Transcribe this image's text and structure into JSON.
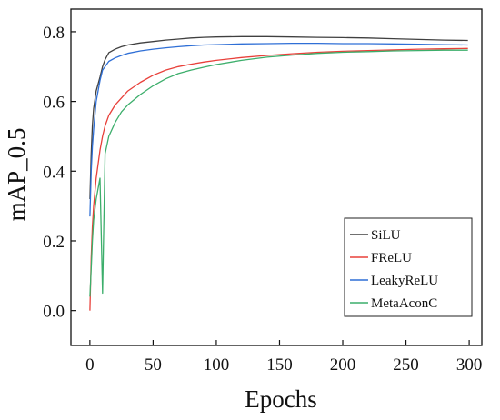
{
  "chart_data": {
    "type": "line",
    "xlabel": "Epochs",
    "ylabel": "mAP_0.5",
    "xlim": [
      -15,
      310
    ],
    "ylim": [
      -0.1,
      0.865
    ],
    "xticks": [
      0,
      50,
      100,
      150,
      200,
      250,
      300
    ],
    "yticks": [
      0.0,
      0.2,
      0.4,
      0.6,
      0.8
    ],
    "x_tick_labels": [
      "0",
      "50",
      "100",
      "150",
      "200",
      "250",
      "300"
    ],
    "y_tick_labels": [
      "0.0",
      "0.2",
      "0.4",
      "0.6",
      "0.8"
    ],
    "grid": false,
    "legend_position": "bottom-right",
    "x": [
      0,
      1,
      2,
      3,
      5,
      8,
      10,
      12,
      15,
      20,
      25,
      30,
      40,
      50,
      60,
      70,
      80,
      90,
      100,
      120,
      140,
      160,
      180,
      200,
      220,
      240,
      260,
      280,
      299
    ],
    "series": [
      {
        "name": "SiLU",
        "color": "#404040",
        "values": [
          0.32,
          0.45,
          0.53,
          0.58,
          0.63,
          0.67,
          0.7,
          0.72,
          0.74,
          0.75,
          0.757,
          0.762,
          0.768,
          0.772,
          0.776,
          0.779,
          0.782,
          0.784,
          0.785,
          0.786,
          0.786,
          0.785,
          0.784,
          0.783,
          0.782,
          0.78,
          0.778,
          0.776,
          0.775
        ]
      },
      {
        "name": "FReLU",
        "color": "#e8403a",
        "values": [
          0.0,
          0.15,
          0.24,
          0.3,
          0.38,
          0.46,
          0.5,
          0.53,
          0.56,
          0.59,
          0.61,
          0.63,
          0.655,
          0.675,
          0.69,
          0.7,
          0.707,
          0.713,
          0.718,
          0.726,
          0.732,
          0.737,
          0.741,
          0.744,
          0.746,
          0.748,
          0.75,
          0.751,
          0.752
        ]
      },
      {
        "name": "LeakyReLU",
        "color": "#2f6fd6",
        "values": [
          0.27,
          0.4,
          0.47,
          0.52,
          0.6,
          0.66,
          0.69,
          0.7,
          0.715,
          0.725,
          0.732,
          0.738,
          0.745,
          0.75,
          0.754,
          0.757,
          0.76,
          0.762,
          0.763,
          0.765,
          0.766,
          0.767,
          0.767,
          0.766,
          0.766,
          0.765,
          0.764,
          0.763,
          0.762
        ]
      },
      {
        "name": "MetaAconC",
        "color": "#3cae6b",
        "values": [
          0.04,
          0.12,
          0.2,
          0.26,
          0.32,
          0.38,
          0.05,
          0.45,
          0.5,
          0.54,
          0.57,
          0.59,
          0.62,
          0.645,
          0.665,
          0.68,
          0.69,
          0.698,
          0.706,
          0.718,
          0.727,
          0.733,
          0.738,
          0.741,
          0.743,
          0.745,
          0.746,
          0.747,
          0.747
        ]
      }
    ]
  }
}
